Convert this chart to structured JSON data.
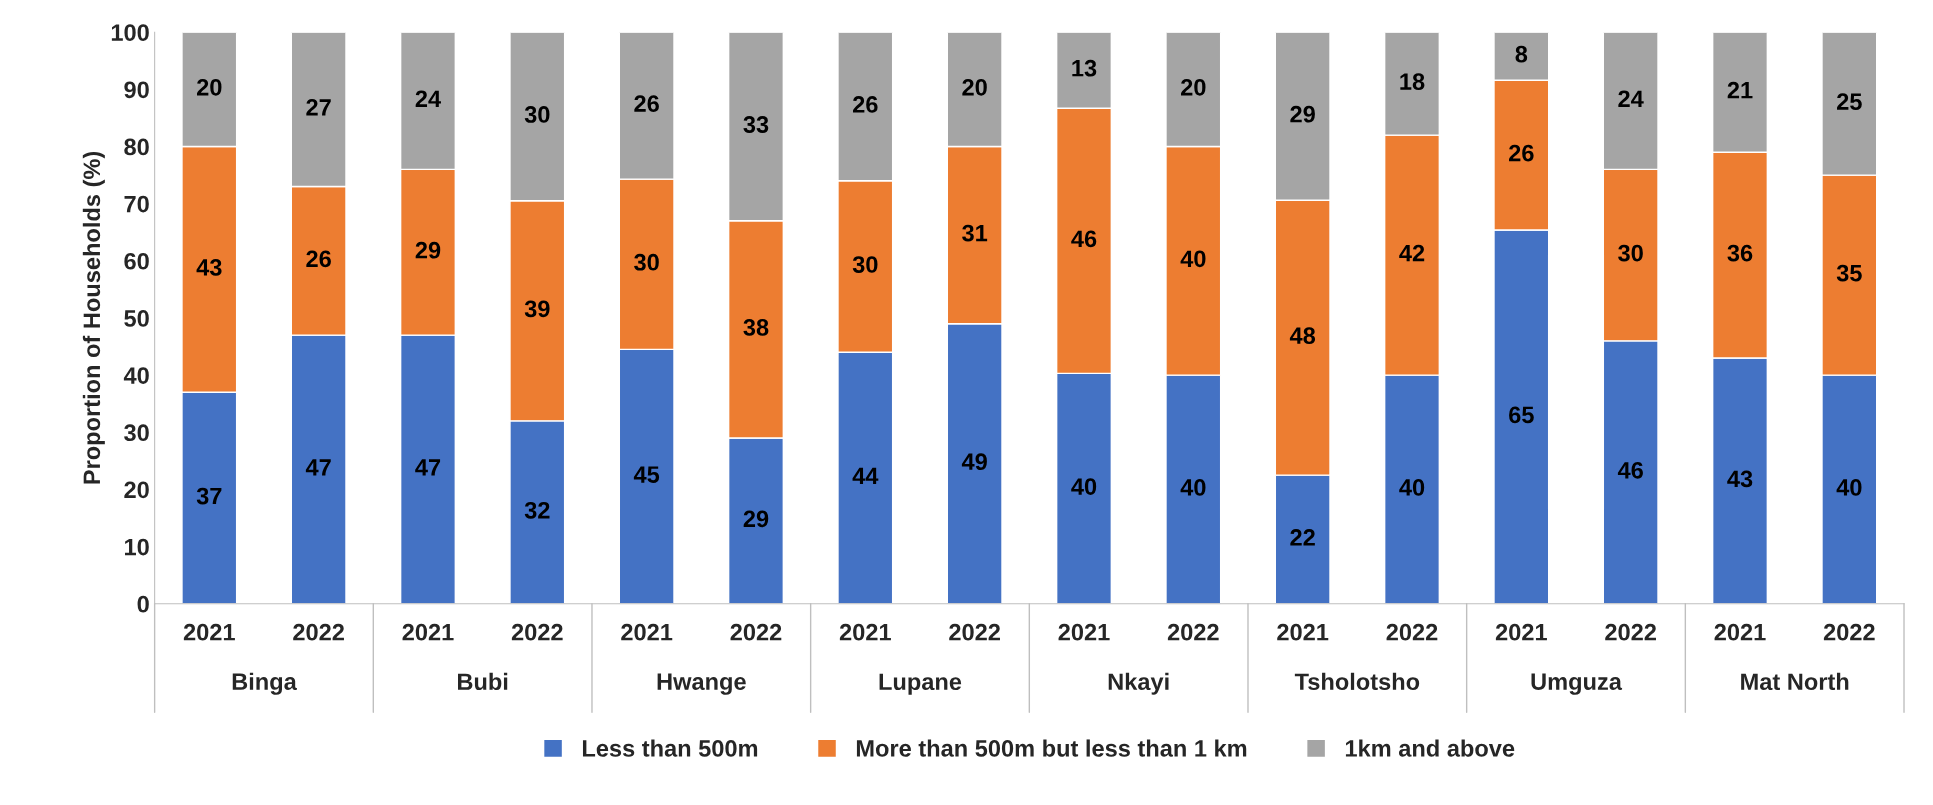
{
  "chart_data": {
    "type": "bar",
    "stacked": true,
    "ylabel": "Proportion of Households (%)",
    "categories": [
      "2021",
      "2022",
      "2021",
      "2022",
      "2021",
      "2022",
      "2021",
      "2022",
      "2021",
      "2022",
      "2021",
      "2022",
      "2021",
      "2022",
      "2021",
      "2022"
    ],
    "annotations": [
      "Binga",
      "Bubi",
      "Hwange",
      "Lupane",
      "Nkayi",
      "Tsholotsho",
      "Umguza",
      "Mat North"
    ],
    "series": [
      {
        "name": "Less than 500m",
        "color": "#4472c4",
        "values": [
          37,
          47,
          47,
          32,
          44.5,
          29,
          44,
          49,
          40.3,
          40,
          22.5,
          40,
          65.4,
          46,
          43,
          40
        ],
        "value_labels": [
          "37",
          "47",
          "47",
          "32",
          "45",
          "29",
          "44",
          "49",
          "40",
          "40",
          "22",
          "40",
          "65",
          "46",
          "43",
          "40"
        ]
      },
      {
        "name": "More than 500m but less than 1 km",
        "color": "#ed7d31",
        "values": [
          43,
          26,
          29,
          38.5,
          29.8,
          38,
          30,
          31,
          46.4,
          40,
          48.1,
          42,
          26.2,
          30,
          36,
          35
        ],
        "value_labels": [
          "43",
          "26",
          "29",
          "39",
          "30",
          "38",
          "30",
          "31",
          "46",
          "40",
          "48",
          "42",
          "26",
          "30",
          "36",
          "35"
        ]
      },
      {
        "name": "1km and above",
        "color": "#a5a5a5",
        "values": [
          20,
          27,
          24,
          29.5,
          25.7,
          33,
          26,
          20,
          13.3,
          20,
          29.4,
          18,
          8.4,
          24,
          21,
          25
        ],
        "value_labels": [
          "20",
          "27",
          "24",
          "30",
          "26",
          "33",
          "26",
          "20",
          "13",
          "20",
          "29",
          "18",
          "8",
          "24",
          "21",
          "25"
        ]
      }
    ],
    "ylim": [
      0,
      100
    ],
    "yticks": [
      0,
      10,
      20,
      30,
      40,
      50,
      60,
      70,
      80,
      90,
      100
    ],
    "grid": false,
    "legend": "bottom"
  }
}
